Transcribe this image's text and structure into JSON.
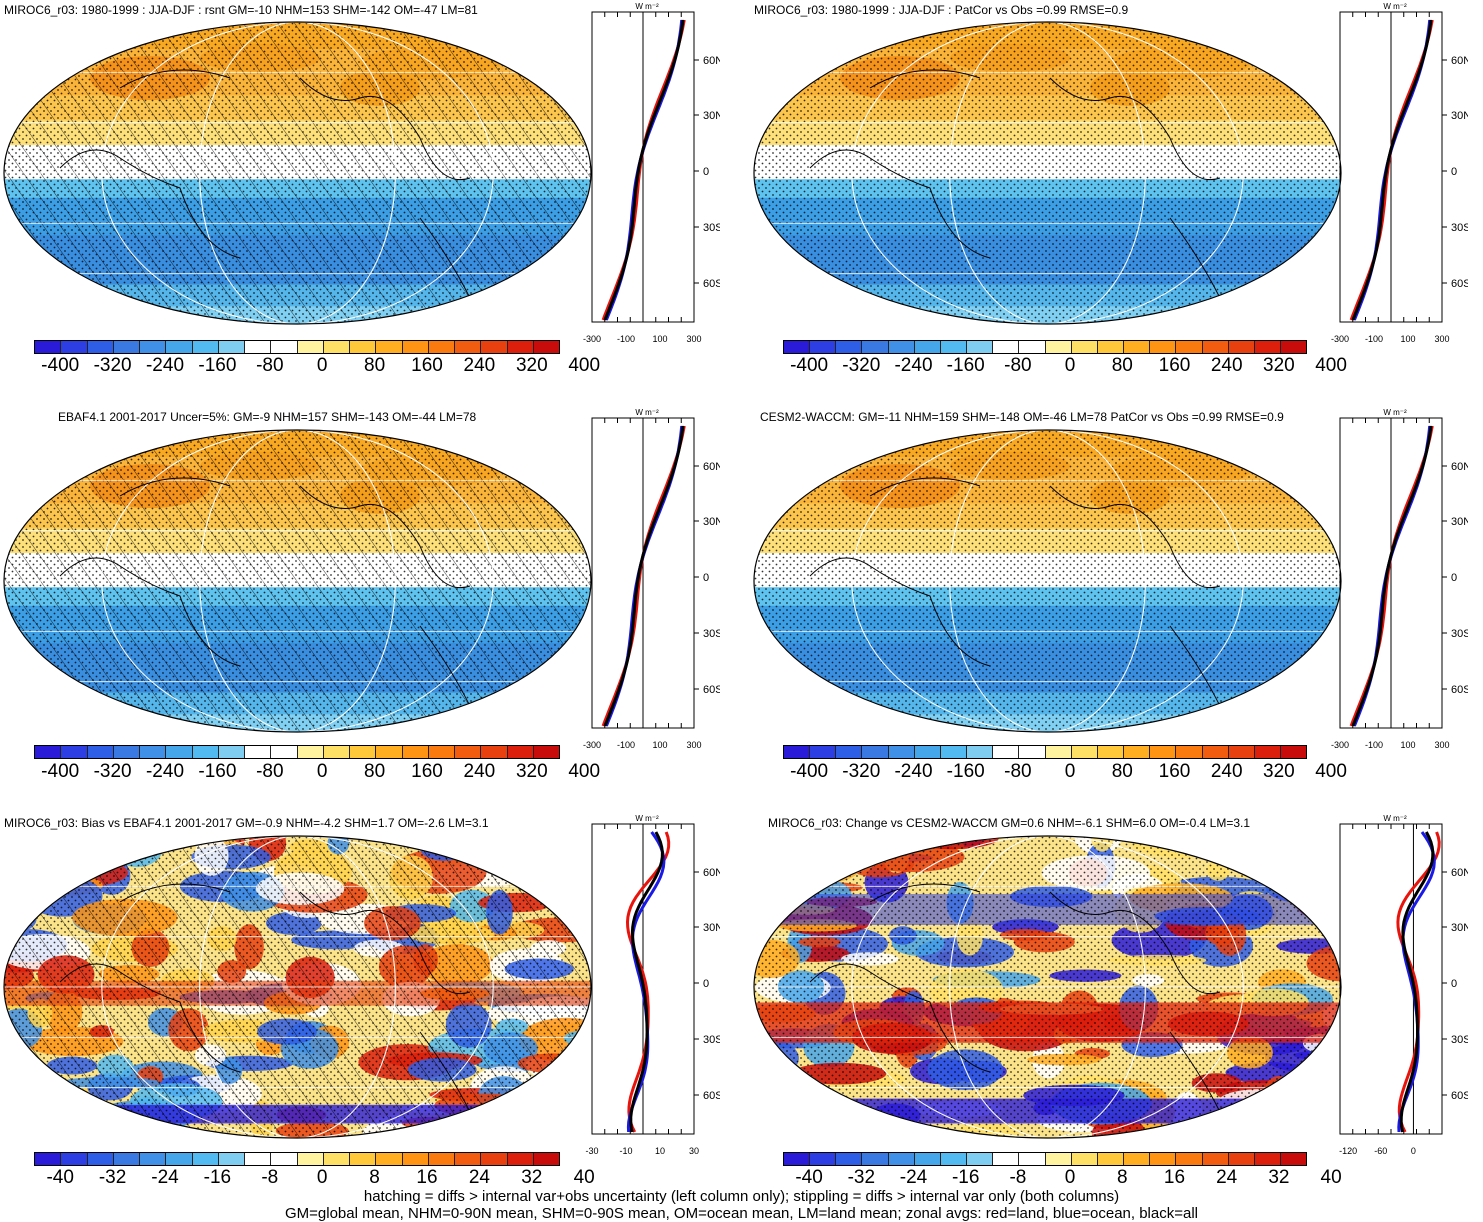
{
  "panels": [
    {
      "id": "p1",
      "title": "MIROC6_r03: 1980-1999 : JJA-DJF : rsnt GM=-10 NHM=153 SHM=-142 OM=-47 LM=81",
      "kind": "mean",
      "hatch": true
    },
    {
      "id": "p2",
      "title": "MIROC6_r03: 1980-1999 : JJA-DJF : PatCor vs Obs =0.99 RMSE=0.9",
      "kind": "mean",
      "hatch": false
    },
    {
      "id": "p3",
      "title": "EBAF4.1 2001-2017 Uncer=5%: GM=-9 NHM=157 SHM=-143 OM=-44 LM=78",
      "kind": "mean",
      "hatch": true
    },
    {
      "id": "p4",
      "title": "CESM2-WACCM: GM=-11 NHM=159 SHM=-148 OM=-46 LM=78 PatCor vs Obs =0.99 RMSE=0.9",
      "kind": "mean",
      "hatch": false
    },
    {
      "id": "p5",
      "title": "MIROC6_r03: Bias vs EBAF4.1 2001-2017 GM=-0.9 NHM=-4.2 SHM=1.7 OM=-2.6 LM=3.1",
      "kind": "diff",
      "hatch": true
    },
    {
      "id": "p6",
      "title": "MIROC6_r03: Change vs CESM2-WACCM GM=0.6 NHM=-6.1 SHM=6.0 OM=-0.4 LM=3.1",
      "kind": "diff",
      "hatch": false
    }
  ],
  "colorbar": {
    "colors": [
      "#2a1bd9",
      "#2d3fe3",
      "#2f5ee6",
      "#3a78e2",
      "#3f90e6",
      "#46a6ea",
      "#52baf0",
      "#7fcdf0",
      "#ffffff",
      "#ffffff",
      "#fff3a0",
      "#ffe066",
      "#ffc83a",
      "#ffad21",
      "#ff9414",
      "#fb7a10",
      "#f25c10",
      "#e8400e",
      "#dc1e0c",
      "#c80b0b"
    ],
    "mean_labels": [
      "-400",
      "-320",
      "-240",
      "-160",
      "-80",
      "0",
      "80",
      "160",
      "240",
      "320",
      "400"
    ],
    "diff_labels": [
      "-40",
      "-32",
      "-24",
      "-16",
      "-8",
      "0",
      "8",
      "16",
      "24",
      "32",
      "40"
    ]
  },
  "zonal": {
    "lat_labels": [
      "60N",
      "30N",
      "0",
      "30S",
      "60S"
    ],
    "unit": "W m⁻²",
    "mean_x_labels": [
      "-300",
      "-100",
      "100",
      "300"
    ],
    "bias_x_labels": [
      "-30",
      "-10",
      "10",
      "30"
    ],
    "change_x_labels": [
      "-120",
      "-60",
      "0"
    ]
  },
  "footer": {
    "line1": "hatching = diffs > internal var+obs uncertainty (left column only); stippling = diffs > internal var only (both columns)",
    "line2": "GM=global mean, NHM=0-90N mean, SHM=0-90S mean, OM=ocean mean, LM=land mean; zonal avgs: red=land, blue=ocean, black=all"
  }
}
